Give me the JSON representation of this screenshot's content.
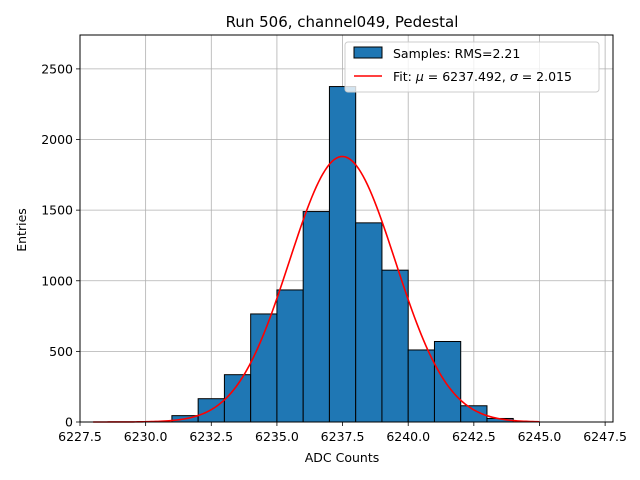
{
  "chart_data": {
    "type": "bar",
    "title": "Run 506, channel049, Pedestal",
    "xlabel": "ADC Counts",
    "ylabel": "Entries",
    "xlim": [
      6227.5,
      6247.8
    ],
    "ylim": [
      0,
      2740
    ],
    "grid": true,
    "legend_position": "top-right",
    "x_ticks": [
      6227.5,
      6230.0,
      6232.5,
      6235.0,
      6237.5,
      6240.0,
      6242.5,
      6245.0,
      6247.5
    ],
    "x_tick_labels": [
      "6227.5",
      "6230.0",
      "6232.5",
      "6235.0",
      "6237.5",
      "6240.0",
      "6242.5",
      "6245.0",
      "6247.5"
    ],
    "y_ticks": [
      0,
      500,
      1000,
      1500,
      2000,
      2500
    ],
    "y_tick_labels": [
      "0",
      "500",
      "1000",
      "1500",
      "2000",
      "2500"
    ],
    "histogram": {
      "name": "Samples: RMS=2.21",
      "color": "#1f77b4",
      "edge_color": "#000000",
      "bin_edges": [
        6231.0,
        6232.0,
        6233.0,
        6234.0,
        6235.0,
        6236.0,
        6237.0,
        6238.0,
        6239.0,
        6240.0,
        6241.0,
        6242.0,
        6243.0,
        6244.0
      ],
      "counts": [
        45,
        165,
        335,
        765,
        935,
        1490,
        2375,
        1410,
        1075,
        510,
        570,
        115,
        25
      ]
    },
    "fit": {
      "name": "Fit: μ = 6237.492, σ = 2.015",
      "label_prefix": "Fit: ",
      "label_mu": "μ",
      "label_mu_value": " = 6237.492, ",
      "label_sigma": "σ",
      "label_sigma_value": " = 2.015",
      "color": "#ff0000",
      "mu": 6237.492,
      "sigma": 2.015,
      "peak": 1880,
      "x_range": [
        6228.0,
        6245.0
      ]
    }
  }
}
